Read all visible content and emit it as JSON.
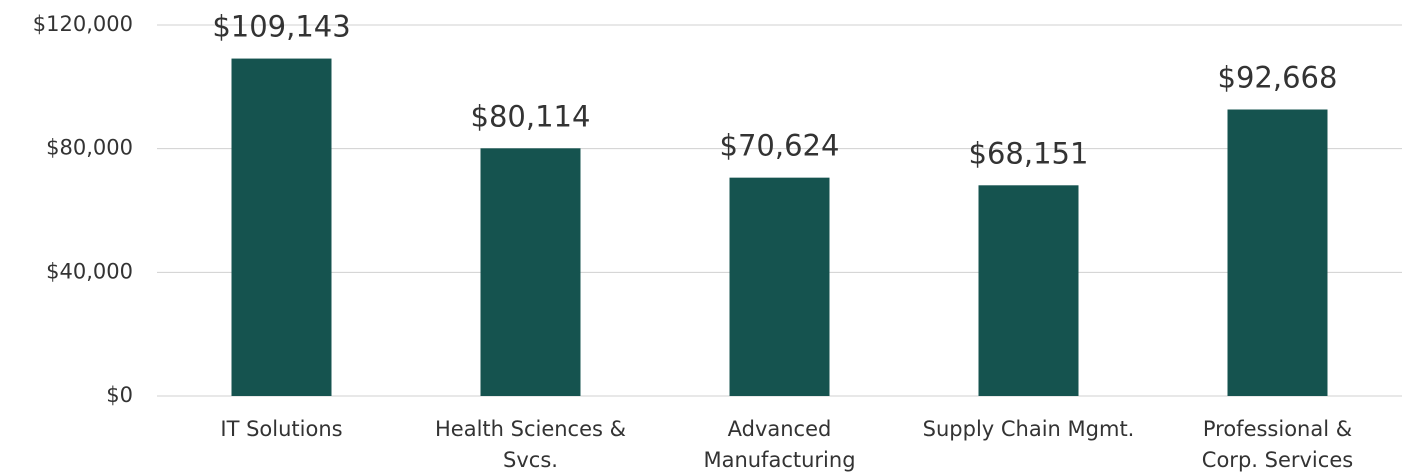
{
  "chart_data": {
    "type": "bar",
    "categories": [
      "IT Solutions",
      "Health Sciences &\nSvcs.",
      "Advanced\nManufacturing",
      "Supply Chain Mgmt.",
      "Professional &\nCorp. Services"
    ],
    "values": [
      109143,
      80114,
      70624,
      68151,
      92668
    ],
    "value_labels": [
      "$109,143",
      "$80,114",
      "$70,624",
      "$68,151",
      "$92,668"
    ],
    "color": "#15534f",
    "ylim": [
      0,
      120000
    ],
    "yticks": [
      {
        "value": 0,
        "label": "$0"
      },
      {
        "value": 40000,
        "label": "$40,000"
      },
      {
        "value": 80000,
        "label": "$80,000"
      },
      {
        "value": 120000,
        "label": "$120,000"
      }
    ],
    "grid": true
  }
}
